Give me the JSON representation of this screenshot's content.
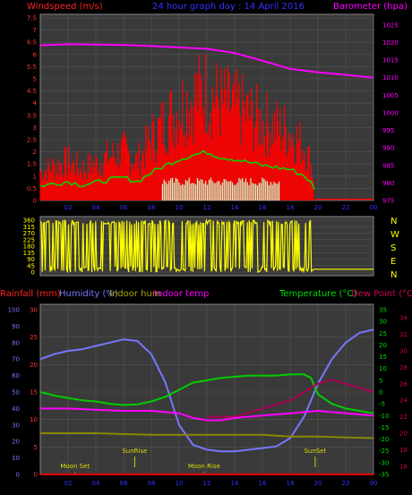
{
  "header": {
    "left_label": "Windspeed (m/s)",
    "center_label": "24 hour graph day : 14 April 2016",
    "right_label": "Barometer (hpa)"
  },
  "bottom_header": {
    "rainfall_label": "Rainfall (mm)",
    "humidity_label": "Humidity (%)",
    "indoor_hum_label": "Indoor hum",
    "indoor_temp_label": "Indoor temp",
    "temperature_label": "Temperature (°C)",
    "dewpoint_label": "Dew Point (°C)"
  },
  "compass": {
    "letters": [
      "N",
      "W",
      "S",
      "E",
      "N"
    ]
  },
  "annotations": {
    "sunrise": "SunRise",
    "sunset": "SunSet",
    "moonset": "Moon Set",
    "moonrise": "Moon Rise"
  },
  "colors": {
    "wind": "#ff0000",
    "wind_avg": "#00dd00",
    "wind_calm": "#ccffcc",
    "barometer": "#ff00ff",
    "direction": "#ffff00",
    "humidity": "#7777ff",
    "temperature": "#00cc00",
    "dewpoint": "#aa0055",
    "indoor_temp": "#ff00ff",
    "indoor_hum": "#888800",
    "rainfall": "#ff0000"
  },
  "chart_data": [
    {
      "type": "line",
      "xlim": [
        0,
        24
      ],
      "x_ticks": [
        "02",
        "04",
        "06",
        "08",
        "10",
        "12",
        "14",
        "16",
        "18",
        "20",
        "22",
        "00"
      ],
      "y_left_ticks": [
        "0",
        "0.5",
        "1",
        "1.5",
        "2",
        "2.5",
        "3",
        "3.5",
        "4",
        "4.5",
        "5",
        "5.5",
        "6",
        "6.5",
        "7",
        "7.5"
      ],
      "y_left_lim": [
        0,
        7.5
      ],
      "y_right_ticks": [
        "975",
        "980",
        "985",
        "990",
        "995",
        "1000",
        "1005",
        "1010",
        "1015",
        "1020",
        "1025"
      ],
      "y_right_lim": [
        975,
        1027
      ],
      "series": [
        {
          "name": "Windspeed (m/s)",
          "axis": "left",
          "x": [
            0,
            1,
            2,
            3,
            4,
            5,
            6,
            7,
            8,
            9,
            10,
            11,
            12,
            13,
            14,
            15,
            16,
            17,
            18,
            19,
            19.5,
            20,
            22,
            24
          ],
          "values": [
            1.2,
            1.4,
            1.6,
            1.3,
            1.5,
            1.8,
            2.0,
            1.6,
            2.5,
            3.2,
            3.8,
            4.2,
            4.5,
            4.0,
            3.8,
            3.5,
            3.2,
            3.0,
            2.8,
            2.2,
            1.5,
            0,
            0,
            0
          ]
        },
        {
          "name": "Barometer (hpa)",
          "axis": "right",
          "x": [
            0,
            2,
            4,
            6,
            8,
            10,
            12,
            14,
            16,
            18,
            20,
            22,
            24
          ],
          "values": [
            1019.2,
            1019.5,
            1019.4,
            1019.3,
            1019.0,
            1018.6,
            1018.2,
            1017.0,
            1014.8,
            1012.5,
            1011.5,
            1010.8,
            1010.0
          ]
        }
      ]
    },
    {
      "type": "scatter",
      "xlim": [
        0,
        24
      ],
      "y_ticks": [
        "0",
        "45",
        "90",
        "135",
        "180",
        "225",
        "270",
        "315",
        "360"
      ],
      "ylim": [
        0,
        360
      ],
      "series": [
        {
          "name": "Wind direction",
          "x": [
            0,
            0.5,
            1,
            1.5,
            2,
            2.5,
            3,
            3.5,
            4,
            4.5,
            5,
            5.5,
            6,
            6.5,
            7,
            7.5,
            8,
            8.5,
            9,
            9.5,
            10,
            10.5,
            11,
            11.5,
            12,
            12.5,
            13,
            13.5,
            14,
            14.5,
            15,
            15.5,
            16,
            16.5,
            17,
            17.5,
            18,
            18.5,
            19,
            19.5,
            20,
            21,
            22,
            23,
            24
          ],
          "values": [
            350,
            10,
            340,
            20,
            355,
            5,
            345,
            15,
            350,
            10,
            355,
            25,
            340,
            5,
            350,
            15,
            345,
            5,
            355,
            10,
            350,
            20,
            345,
            5,
            355,
            15,
            340,
            10,
            350,
            20,
            345,
            5,
            355,
            15,
            350,
            10,
            345,
            25,
            350,
            30,
            20,
            20,
            20,
            20,
            20
          ]
        }
      ]
    },
    {
      "type": "line",
      "xlim": [
        0,
        24
      ],
      "x_ticks": [
        "02",
        "04",
        "06",
        "08",
        "10",
        "12",
        "14",
        "16",
        "18",
        "20",
        "22",
        "00"
      ],
      "humidity_ticks": [
        "0",
        "10",
        "20",
        "30",
        "40",
        "50",
        "60",
        "70",
        "80",
        "90",
        "100"
      ],
      "humidity_lim": [
        0,
        100
      ],
      "rainfall_ticks": [
        "0",
        "5",
        "10",
        "15",
        "20",
        "25",
        "30"
      ],
      "rainfall_lim": [
        0,
        30
      ],
      "temperature_ticks": [
        "-35",
        "-30",
        "-25",
        "-20",
        "-15",
        "-10",
        "-5",
        "0",
        "5",
        "10",
        "15",
        "20",
        "25",
        "30",
        "35"
      ],
      "temperature_lim": [
        -35,
        35
      ],
      "dewpoint_ticks": [
        "16",
        "18",
        "20",
        "22",
        "24",
        "26",
        "28",
        "30",
        "32",
        "34"
      ],
      "dewpoint_lim": [
        15,
        35
      ],
      "series": [
        {
          "name": "Humidity (%)",
          "axis": "humidity",
          "x": [
            0,
            1,
            2,
            3,
            4,
            5,
            6,
            7,
            8,
            9,
            10,
            11,
            12,
            13,
            14,
            15,
            16,
            17,
            18,
            19,
            20,
            21,
            22,
            23,
            24
          ],
          "values": [
            70,
            73,
            75,
            76,
            78,
            80,
            82,
            81,
            73,
            56,
            30,
            18,
            15,
            14,
            14,
            15,
            16,
            17,
            22,
            35,
            55,
            70,
            80,
            86,
            88
          ]
        },
        {
          "name": "Temperature (°C)",
          "axis": "temperature",
          "x": [
            0,
            1,
            2,
            3,
            4,
            5,
            6,
            7,
            8,
            9,
            10,
            11,
            12,
            13,
            14,
            15,
            16,
            17,
            18,
            19,
            19.5,
            20,
            21,
            22,
            23,
            24
          ],
          "values": [
            0,
            -1.5,
            -2.5,
            -3.5,
            -4,
            -5,
            -5.5,
            -5.2,
            -4,
            -2,
            1,
            4,
            5,
            6,
            6.5,
            7,
            7,
            7,
            7.5,
            7.5,
            6,
            -1,
            -5,
            -7,
            -8,
            -9
          ]
        },
        {
          "name": "Dew Point (°C)",
          "axis": "dewpoint",
          "x": [
            12,
            14,
            16,
            17,
            18,
            19,
            20,
            21,
            22,
            23,
            24
          ],
          "values": [
            22,
            22,
            23,
            23.5,
            24,
            25,
            26,
            26.5,
            26,
            25.5,
            25
          ]
        },
        {
          "name": "Indoor temp",
          "axis": "temperature",
          "x": [
            0,
            2,
            4,
            6,
            8,
            10,
            11,
            12,
            13,
            14,
            16,
            18,
            20,
            22,
            24
          ],
          "values": [
            -7,
            -7,
            -7.5,
            -8,
            -8,
            -9,
            -11,
            -12,
            -12,
            -11,
            -10,
            -9,
            -8,
            -9,
            -10
          ]
        },
        {
          "name": "Indoor hum",
          "axis": "humidity",
          "x": [
            0,
            4,
            8,
            12,
            16,
            18,
            20,
            24
          ],
          "values": [
            25,
            25,
            24,
            24,
            24,
            23,
            23,
            22
          ]
        },
        {
          "name": "Rainfall (mm)",
          "axis": "rainfall",
          "x": [
            0,
            24
          ],
          "values": [
            0,
            0
          ]
        }
      ],
      "markers": [
        {
          "label": "SunRise",
          "x": 6.8
        },
        {
          "label": "SunSet",
          "x": 19.8
        },
        {
          "label": "Moon Set",
          "x": 2.5
        },
        {
          "label": "Moon Rise",
          "x": 11.8
        }
      ]
    }
  ]
}
